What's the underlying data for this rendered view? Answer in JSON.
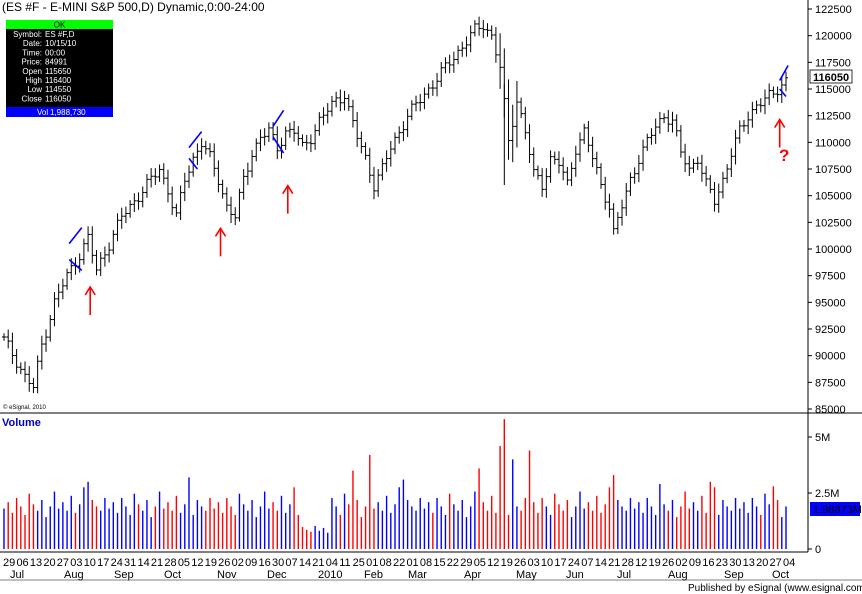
{
  "header": {
    "title": "(ES #F - E-MINI S&P 500,D) Dynamic,0:00-24:00"
  },
  "info_box": {
    "status": "OK",
    "rows": [
      {
        "label": "Symbol:",
        "value": "ES #F,D"
      },
      {
        "label": "Date:",
        "value": "10/15/10"
      },
      {
        "label": "Time:",
        "value": "00:00"
      },
      {
        "label": "Price:",
        "value": "84991"
      },
      {
        "label": "Open",
        "value": "115650"
      },
      {
        "label": "High",
        "value": "116400"
      },
      {
        "label": "Low",
        "value": "114550"
      },
      {
        "label": "Close",
        "value": "116050"
      }
    ],
    "vol_label": "Vol",
    "vol_value": "1,988,730"
  },
  "copyright": "© eSignal, 2010",
  "volume_title": "Volume",
  "current_price_label": "116050",
  "current_volume_label": "1.98873M",
  "question_mark": "?",
  "footer": "Published by eSignal (www.esignal.com)",
  "colors": {
    "bar": "#000000",
    "trend": "#0000ff",
    "arrow": "#ff0000",
    "vol_up": "#0000ff",
    "vol_down": "#ff0000",
    "highlight": "#0000ff"
  },
  "chart_data": {
    "type": "ohlc",
    "price_axis": {
      "min": 85000,
      "max": 122500,
      "ticks": [
        "122500",
        "120000",
        "117500",
        "115000",
        "112500",
        "110000",
        "107500",
        "105000",
        "102500",
        "100000",
        "97500",
        "95000",
        "92500",
        "90000",
        "87500",
        "85000"
      ]
    },
    "volume_axis": {
      "ticks": [
        "5M",
        "2.5M",
        "0"
      ]
    },
    "x_day_labels": [
      "29",
      "06",
      "13",
      "20",
      "27",
      "03",
      "10",
      "17",
      "24",
      "31",
      "14",
      "21",
      "28",
      "05",
      "12",
      "19",
      "26",
      "02",
      "09",
      "16",
      "30",
      "07",
      "14",
      "21",
      "04",
      "11",
      "25",
      "01",
      "08",
      "22",
      "01",
      "08",
      "15",
      "22",
      "29",
      "05",
      "12",
      "19",
      "26",
      "03",
      "10",
      "17",
      "24",
      "07",
      "14",
      "21",
      "28",
      "12",
      "19",
      "26",
      "02",
      "09",
      "16",
      "23",
      "30",
      "13",
      "20",
      "27",
      "04"
    ],
    "x_months": [
      "Jul",
      "Aug",
      "Sep",
      "Oct",
      "Nov",
      "Dec",
      "2010",
      "Feb",
      "Mar",
      "Apr",
      "May",
      "Jun",
      "Jul",
      "Aug",
      "Sep",
      "Oct"
    ],
    "price_path": [
      [
        0,
        91500
      ],
      [
        3,
        89500
      ],
      [
        5,
        88000
      ],
      [
        7,
        87000
      ],
      [
        9,
        91000
      ],
      [
        12,
        95000
      ],
      [
        15,
        97500
      ],
      [
        18,
        99500
      ],
      [
        20,
        101000
      ],
      [
        22,
        98000
      ],
      [
        25,
        100500
      ],
      [
        28,
        103000
      ],
      [
        31,
        104500
      ],
      [
        34,
        106000
      ],
      [
        37,
        107500
      ],
      [
        39,
        105500
      ],
      [
        41,
        103000
      ],
      [
        43,
        106500
      ],
      [
        45,
        108500
      ],
      [
        47,
        110000
      ],
      [
        49,
        108500
      ],
      [
        51,
        106500
      ],
      [
        53,
        104000
      ],
      [
        55,
        103000
      ],
      [
        57,
        106500
      ],
      [
        59,
        109000
      ],
      [
        61,
        110500
      ],
      [
        63,
        111000
      ],
      [
        65,
        109500
      ],
      [
        67,
        111000
      ],
      [
        69,
        111000
      ],
      [
        71,
        109500
      ],
      [
        73,
        110500
      ],
      [
        75,
        112000
      ],
      [
        77,
        113000
      ],
      [
        79,
        114000
      ],
      [
        81,
        114500
      ],
      [
        82,
        113000
      ],
      [
        84,
        110500
      ],
      [
        86,
        108500
      ],
      [
        88,
        106000
      ],
      [
        90,
        107500
      ],
      [
        92,
        109500
      ],
      [
        94,
        111000
      ],
      [
        96,
        112500
      ],
      [
        98,
        113500
      ],
      [
        100,
        114500
      ],
      [
        102,
        115500
      ],
      [
        104,
        116500
      ],
      [
        106,
        117500
      ],
      [
        108,
        118500
      ],
      [
        110,
        119500
      ],
      [
        112,
        120500
      ],
      [
        114,
        121000
      ],
      [
        116,
        120000
      ],
      [
        118,
        117000
      ],
      [
        119,
        113500
      ],
      [
        120,
        110000
      ],
      [
        122,
        114000
      ],
      [
        124,
        111000
      ],
      [
        126,
        107000
      ],
      [
        128,
        106000
      ],
      [
        130,
        108500
      ],
      [
        132,
        108000
      ],
      [
        134,
        106000
      ],
      [
        136,
        109500
      ],
      [
        138,
        111000
      ],
      [
        140,
        108500
      ],
      [
        142,
        106000
      ],
      [
        144,
        104000
      ],
      [
        145,
        101500
      ],
      [
        147,
        104000
      ],
      [
        149,
        106500
      ],
      [
        151,
        108500
      ],
      [
        153,
        110000
      ],
      [
        155,
        111500
      ],
      [
        157,
        112500
      ],
      [
        159,
        112000
      ],
      [
        161,
        109000
      ],
      [
        163,
        107500
      ],
      [
        165,
        108500
      ],
      [
        167,
        106000
      ],
      [
        169,
        104500
      ],
      [
        171,
        106500
      ],
      [
        173,
        109000
      ],
      [
        175,
        111000
      ],
      [
        177,
        112500
      ],
      [
        179,
        113500
      ],
      [
        181,
        114000
      ],
      [
        183,
        114500
      ],
      [
        185,
        115500
      ],
      [
        186,
        116050
      ]
    ],
    "volume_pattern": [
      1.9,
      2.2,
      1.7,
      2.4,
      2.0,
      1.6,
      2.6,
      2.1,
      1.8,
      2.3,
      1.5,
      2.0,
      2.7,
      1.9,
      2.2,
      1.8,
      2.5,
      1.7,
      2.1,
      2.9,
      1.6,
      2.3,
      2.0,
      1.8,
      2.4
    ],
    "volume_spikes": [
      [
        20,
        3.0
      ],
      [
        44,
        3.2
      ],
      [
        83,
        3.5
      ],
      [
        87,
        4.2
      ],
      [
        95,
        3.1
      ],
      [
        113,
        3.6
      ],
      [
        118,
        4.6
      ],
      [
        119,
        5.8
      ],
      [
        121,
        4.0
      ],
      [
        125,
        4.4
      ],
      [
        145,
        3.3
      ],
      [
        156,
        2.9
      ],
      [
        168,
        3.0
      ],
      [
        183,
        2.8
      ]
    ],
    "trend_segments": [
      [
        15.5,
        100500,
        18.5,
        102000
      ],
      [
        15.5,
        99000,
        18.5,
        98000
      ],
      [
        44,
        109500,
        47,
        111000
      ],
      [
        44,
        108500,
        46,
        107500
      ],
      [
        64,
        111500,
        66.5,
        113000
      ],
      [
        64,
        110500,
        66.5,
        109000
      ],
      [
        184.5,
        115800,
        186.5,
        117200
      ],
      [
        184.5,
        115000,
        186,
        114300
      ]
    ],
    "arrows_x": [
      20.5,
      51.5,
      67.5,
      184.5
    ],
    "arrow_tip_prices": [
      97000,
      102500,
      106500,
      112700
    ]
  }
}
